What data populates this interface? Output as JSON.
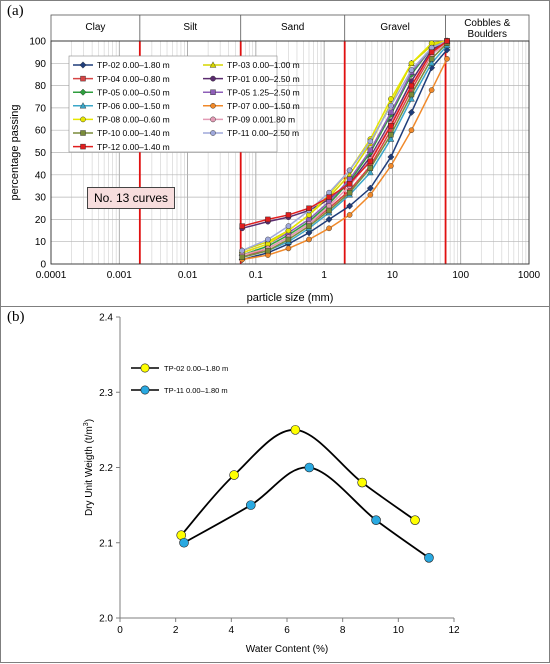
{
  "panel_a": {
    "tag": "(a)",
    "note": "No. 13 curves"
  },
  "panel_b": {
    "tag": "(b)"
  },
  "chart_data": [
    {
      "type": "line",
      "panel": "(a)",
      "xlabel": "particle size (mm)",
      "ylabel": "percentage passing",
      "xscale": "log",
      "xlim": [
        0.0001,
        1000
      ],
      "ylim": [
        0,
        100
      ],
      "xticks": [
        0.0001,
        0.001,
        0.01,
        0.1,
        1,
        10,
        100,
        1000
      ],
      "xtick_labels": [
        "0.0001",
        "0.001",
        "0.01",
        "0.1",
        "1",
        "10",
        "100",
        "1000"
      ],
      "yticks": [
        0,
        10,
        20,
        30,
        40,
        50,
        60,
        70,
        80,
        90,
        100
      ],
      "grid": true,
      "legend_position": "upper-left",
      "zones": [
        {
          "label": "Clay",
          "from": 0.0001,
          "to": 0.002
        },
        {
          "label": "Silt",
          "from": 0.002,
          "to": 0.06
        },
        {
          "label": "Sand",
          "from": 0.06,
          "to": 2
        },
        {
          "label": "Gravel",
          "from": 2,
          "to": 60
        },
        {
          "label": "Cobbles & Boulders",
          "from": 60,
          "to": 1000
        }
      ],
      "boundaries": [
        0.002,
        0.06,
        2,
        60
      ],
      "series": [
        {
          "name": "TP-02 0.00–1.80 m",
          "color": "#1f3d7a",
          "marker": "diamond",
          "x": [
            0.063,
            0.15,
            0.3,
            0.6,
            1.18,
            2.36,
            4.75,
            9.5,
            19,
            37.5,
            63
          ],
          "y": [
            2,
            5,
            9,
            14,
            20,
            26,
            34,
            48,
            68,
            88,
            96
          ]
        },
        {
          "name": "TP-03 0.00–1.00 m",
          "color": "#d6d600",
          "marker": "triangle",
          "x": [
            0.063,
            0.15,
            0.3,
            0.6,
            1.18,
            2.36,
            4.75,
            9.5,
            19,
            37.5,
            63
          ],
          "y": [
            6,
            10,
            15,
            22,
            30,
            40,
            54,
            72,
            90,
            98,
            100
          ]
        },
        {
          "name": "TP-04 0.00–0.80 m",
          "color": "#d64545",
          "marker": "square",
          "x": [
            0.063,
            0.15,
            0.3,
            0.6,
            1.18,
            2.36,
            4.75,
            9.5,
            19,
            37.5,
            63
          ],
          "y": [
            3,
            7,
            12,
            18,
            25,
            33,
            44,
            60,
            78,
            94,
            100
          ]
        },
        {
          "name": "TP-01 0.00–2.50 m",
          "color": "#5b2c6f",
          "marker": "circle",
          "x": [
            0.063,
            0.15,
            0.3,
            0.6,
            1.18,
            2.36,
            4.75,
            9.5,
            19,
            37.5,
            63
          ],
          "y": [
            16,
            19,
            21,
            24,
            29,
            36,
            48,
            64,
            82,
            96,
            100
          ]
        },
        {
          "name": "TP-05 0.00–0.50 m",
          "color": "#2e9e3e",
          "marker": "diamond",
          "x": [
            0.063,
            0.15,
            0.3,
            0.6,
            1.18,
            2.36,
            4.75,
            9.5,
            19,
            37.5,
            63
          ],
          "y": [
            4,
            8,
            13,
            19,
            27,
            37,
            50,
            67,
            85,
            97,
            100
          ]
        },
        {
          "name": "TP-05 1.25–2.50 m",
          "color": "#8e5fb8",
          "marker": "square",
          "x": [
            0.063,
            0.15,
            0.3,
            0.6,
            1.18,
            2.36,
            4.75,
            9.5,
            19,
            37.5,
            63
          ],
          "y": [
            5,
            9,
            14,
            20,
            28,
            38,
            51,
            68,
            86,
            97,
            100
          ]
        },
        {
          "name": "TP-06 0.00–1.50 m",
          "color": "#3ba7c9",
          "marker": "triangle",
          "x": [
            0.063,
            0.15,
            0.3,
            0.6,
            1.18,
            2.36,
            4.75,
            9.5,
            19,
            37.5,
            63
          ],
          "y": [
            3,
            6,
            10,
            16,
            23,
            31,
            41,
            56,
            74,
            90,
            98
          ]
        },
        {
          "name": "TP-07 0.00–1.50 m",
          "color": "#f0892a",
          "marker": "circle",
          "x": [
            0.063,
            0.15,
            0.3,
            0.6,
            1.18,
            2.36,
            4.75,
            9.5,
            19,
            37.5,
            63
          ],
          "y": [
            2,
            4,
            7,
            11,
            16,
            22,
            31,
            44,
            60,
            78,
            92
          ]
        },
        {
          "name": "TP-08 0.00–0.60 m",
          "color": "#e6e600",
          "marker": "circle",
          "x": [
            0.063,
            0.15,
            0.3,
            0.6,
            1.18,
            2.36,
            4.75,
            9.5,
            19,
            37.5,
            63
          ],
          "y": [
            5,
            9,
            15,
            22,
            31,
            42,
            56,
            74,
            90,
            99,
            100
          ]
        },
        {
          "name": "TP-09 0.001.80 m",
          "color": "#e39bb5",
          "marker": "circle",
          "x": [
            0.063,
            0.15,
            0.3,
            0.6,
            1.18,
            2.36,
            4.75,
            9.5,
            19,
            37.5,
            63
          ],
          "y": [
            4,
            7,
            12,
            18,
            26,
            35,
            47,
            63,
            80,
            94,
            99
          ]
        },
        {
          "name": "TP-10 0.00–1.40 m",
          "color": "#7a8c3a",
          "marker": "square",
          "x": [
            0.063,
            0.15,
            0.3,
            0.6,
            1.18,
            2.36,
            4.75,
            9.5,
            19,
            37.5,
            63
          ],
          "y": [
            3,
            6,
            11,
            17,
            24,
            32,
            43,
            58,
            76,
            92,
            99
          ]
        },
        {
          "name": "TP-11 0.00–2.50 m",
          "color": "#9fa8da",
          "marker": "circle",
          "x": [
            0.063,
            0.15,
            0.3,
            0.6,
            1.18,
            2.36,
            4.75,
            9.5,
            19,
            37.5,
            63
          ],
          "y": [
            6,
            11,
            17,
            24,
            32,
            42,
            55,
            71,
            87,
            97,
            100
          ]
        },
        {
          "name": "TP-12 0.00–1.40 m",
          "color": "#e01e1e",
          "marker": "square",
          "x": [
            0.063,
            0.15,
            0.3,
            0.6,
            1.18,
            2.36,
            4.75,
            9.5,
            19,
            37.5,
            63
          ],
          "y": [
            17,
            20,
            22,
            25,
            30,
            36,
            46,
            62,
            80,
            95,
            100
          ]
        }
      ]
    },
    {
      "type": "line",
      "panel": "(b)",
      "xlabel": "Water Content (%)",
      "ylabel": "Dry Unit Weigth (t/m",
      "ylabel_sup": "3",
      "ylabel_suffix": ")",
      "xlim": [
        0,
        12
      ],
      "ylim": [
        2.0,
        2.4
      ],
      "xticks": [
        0,
        2,
        4,
        6,
        8,
        10,
        12
      ],
      "xtick_labels": [
        "0",
        "2",
        "4",
        "6",
        "8",
        "10",
        "12"
      ],
      "yticks": [
        2.0,
        2.1,
        2.2,
        2.3,
        2.4
      ],
      "ytick_labels": [
        "2.0",
        "2.1",
        "2.2",
        "2.3",
        "2.4"
      ],
      "grid": false,
      "legend_position": "upper-left",
      "series": [
        {
          "name": "TP-02 0.00–1.80 m",
          "color": "#ffff00",
          "x": [
            2.2,
            4.1,
            6.3,
            8.7,
            10.6
          ],
          "y": [
            2.11,
            2.19,
            2.25,
            2.18,
            2.13
          ]
        },
        {
          "name": "TP-11 0.00–1.80 m",
          "color": "#29a9e1",
          "x": [
            2.3,
            4.7,
            6.8,
            9.2,
            11.1
          ],
          "y": [
            2.1,
            2.15,
            2.2,
            2.13,
            2.08
          ]
        }
      ]
    }
  ]
}
